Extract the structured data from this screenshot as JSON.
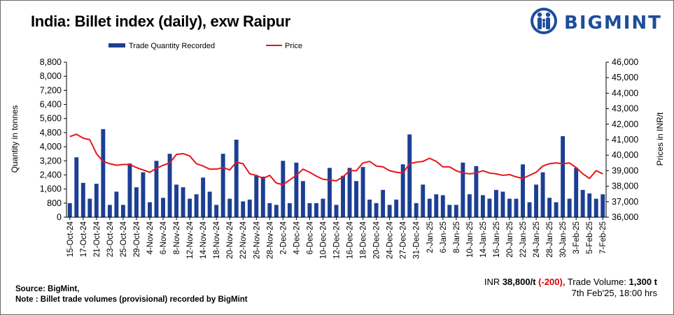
{
  "title": "India: Billet index (daily), exw Raipur",
  "logo": {
    "text": "BIGMINT",
    "icon": "bigmint-people-icon"
  },
  "footer": {
    "source": "Source: BigMint,",
    "note": "Note : Billet trade volumes (provisional) recorded by BigMint"
  },
  "summary": {
    "price_prefix": "INR ",
    "price": "38,800/t",
    "change": "(-200),",
    "volume_prefix": " Trade Volume: ",
    "volume": "1,300 t",
    "timestamp": "7th Feb'25, 18:00 hrs"
  },
  "colors": {
    "bars": "#1c3f94",
    "line": "#e8141c"
  },
  "chart_data": {
    "type": "bar+line",
    "legend": {
      "placement": "top",
      "bar_label": "Trade Quantity Recorded",
      "line_label": "Price"
    },
    "ylabel_left": "Quantity in tonnes",
    "ylabel_right": "Prices in INR/t",
    "ylim_left": [
      0,
      8800
    ],
    "yticks_left": [
      "0",
      "800",
      "1,600",
      "2,400",
      "3,200",
      "4,000",
      "4,800",
      "5,600",
      "6,400",
      "7,200",
      "8,000",
      "8,800"
    ],
    "ylim_right": [
      36000,
      46000
    ],
    "yticks_right": [
      "36,000",
      "37,000",
      "38,000",
      "39,000",
      "40,000",
      "41,000",
      "42,000",
      "43,000",
      "44,000",
      "45,000",
      "46,000"
    ],
    "xtick_labels": [
      "15-Oct-24",
      "17-Oct-24",
      "21-Oct-24",
      "23-Oct-24",
      "25-Oct-24",
      "29-Oct-24",
      "4-Nov-24",
      "6-Nov-24",
      "8-Nov-24",
      "12-Nov-24",
      "14-Nov-24",
      "18-Nov-24",
      "20-Nov-24",
      "22-Nov-24",
      "26-Nov-24",
      "28-Nov-24",
      "2-Dec-24",
      "4-Dec-24",
      "6-Dec-24",
      "10-Dec-24",
      "12-Dec-24",
      "16-Dec-24",
      "18-Dec-24",
      "20-Dec-24",
      "24-Dec-24",
      "27-Dec-24",
      "31-Dec-24",
      "2-Jan-25",
      "6-Jan-25",
      "8-Jan-25",
      "10-Jan-25",
      "14-Jan-25",
      "16-Jan-25",
      "20-Jan-25",
      "22-Jan-25",
      "24-Jan-25",
      "28-Jan-25",
      "30-Jan-25",
      "3-Feb-25",
      "5-Feb-25",
      "7-Feb-25"
    ],
    "quantity": [
      800,
      3400,
      1950,
      1050,
      1900,
      5000,
      700,
      1450,
      700,
      3050,
      1700,
      2550,
      850,
      3200,
      1100,
      3600,
      1850,
      1700,
      1050,
      1300,
      2250,
      1450,
      700,
      3600,
      1050,
      4400,
      900,
      1000,
      2350,
      2300,
      800,
      700,
      3200,
      800,
      3100,
      2050,
      800,
      800,
      1050,
      2800,
      700,
      2350,
      2800,
      2050,
      2850,
      1000,
      800,
      1550,
      700,
      1000,
      3000,
      4700,
      800,
      1850,
      1050,
      1300,
      1250,
      700,
      700,
      3100,
      1300,
      2900,
      1250,
      1050,
      1550,
      1450,
      1050,
      1050,
      3000,
      850,
      1850,
      2550,
      1100,
      850,
      4600,
      1050,
      2800,
      1550,
      1350,
      1050,
      1300
    ],
    "price": [
      41200,
      41350,
      41100,
      41000,
      40100,
      39600,
      39450,
      39350,
      39400,
      39400,
      39200,
      39050,
      38900,
      39150,
      39350,
      39500,
      40050,
      40100,
      39950,
      39450,
      39300,
      39100,
      39100,
      39200,
      39050,
      39550,
      39450,
      38800,
      38700,
      38500,
      38700,
      38200,
      38100,
      38400,
      38700,
      39100,
      38900,
      38650,
      38450,
      38400,
      38350,
      38600,
      39000,
      39000,
      39500,
      39600,
      39300,
      39250,
      39000,
      38900,
      38850,
      39450,
      39550,
      39600,
      39800,
      39600,
      39250,
      39250,
      39000,
      38850,
      38800,
      38850,
      39000,
      38850,
      38800,
      38700,
      38750,
      38600,
      38500,
      38700,
      38900,
      39300,
      39450,
      39500,
      39450,
      39500,
      39200,
      38800,
      38500,
      39000,
      38800
    ]
  }
}
